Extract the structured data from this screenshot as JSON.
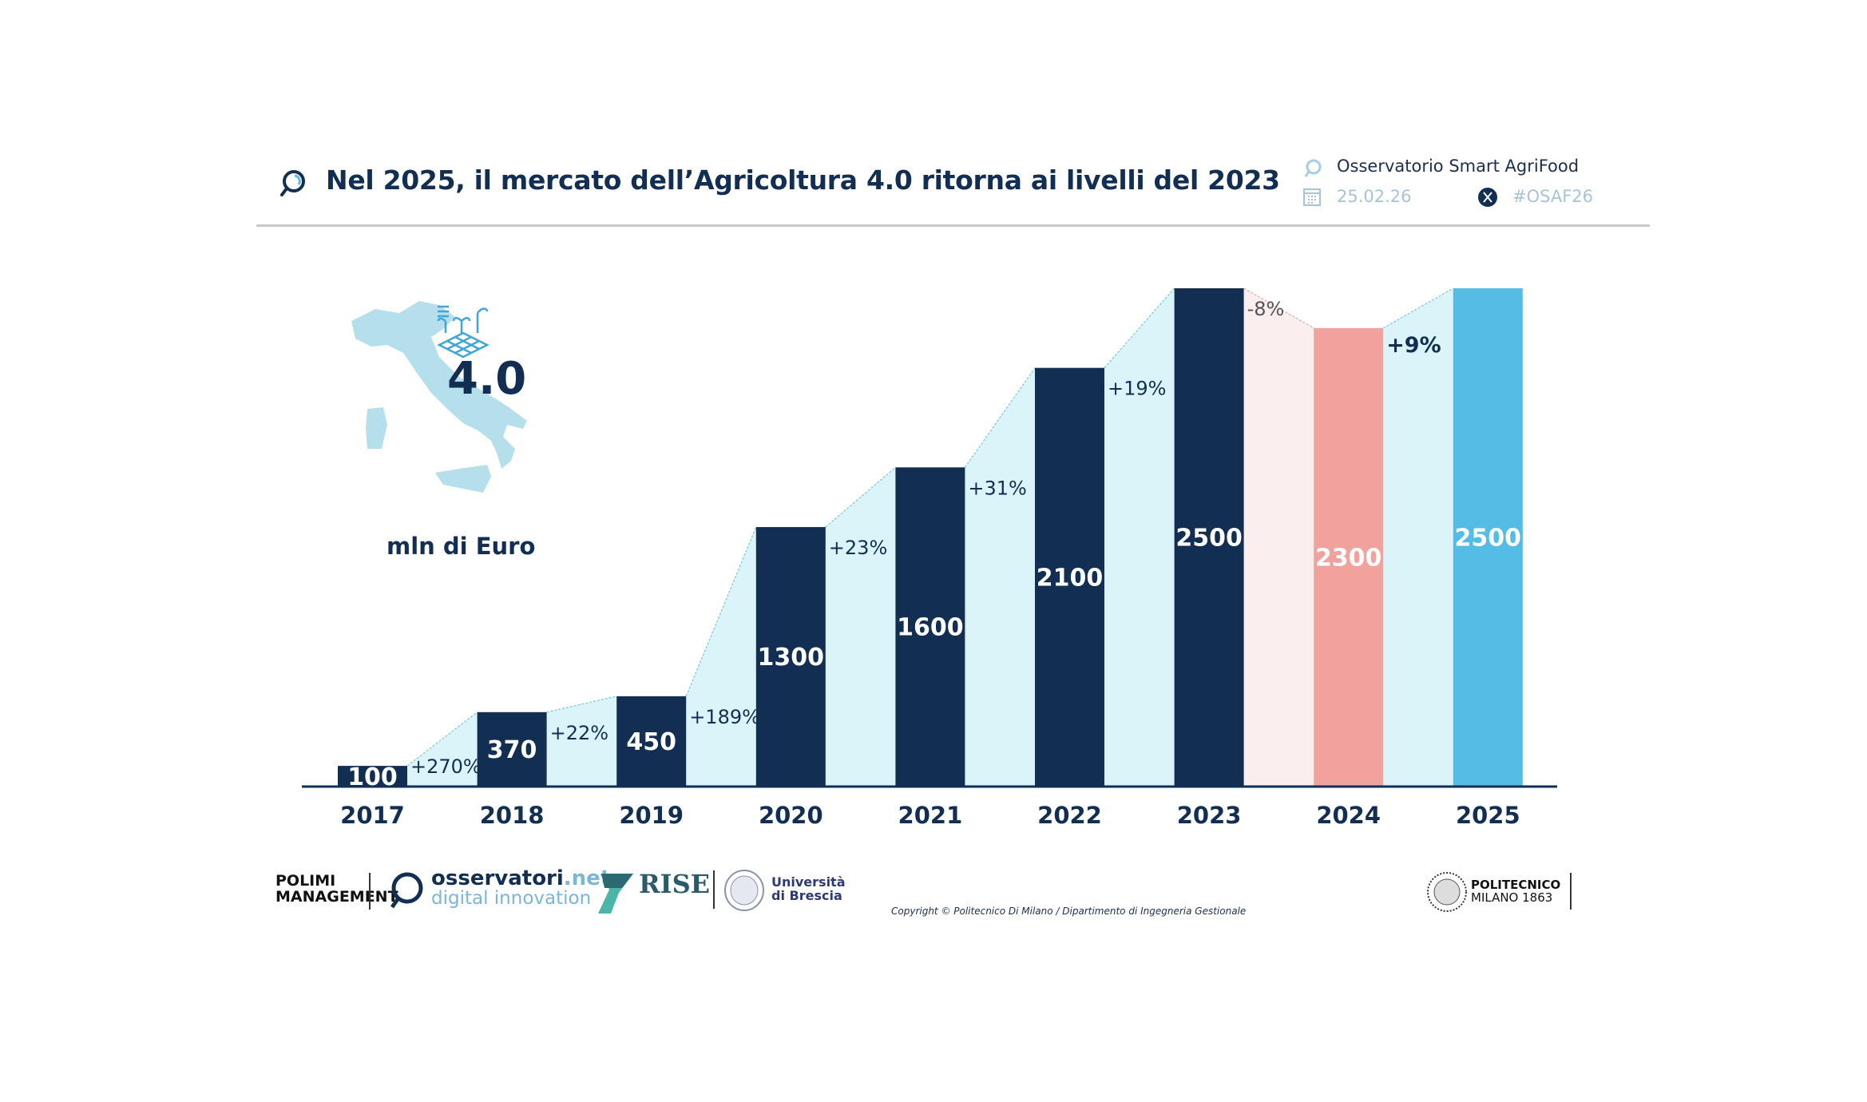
{
  "header": {
    "title": "Nel 2025, il mercato dell’Agricoltura 4.0 ritorna ai livelli del 2023",
    "observatory": "Osservatorio Smart AgriFood",
    "date": "25.02.26",
    "hashtag": "#OSAF26",
    "icons": [
      "magnifier-icon",
      "calendar-icon",
      "x-icon"
    ]
  },
  "badge": {
    "label": "4.0",
    "unit": "mln di Euro"
  },
  "chart_data": {
    "type": "bar",
    "title": "Nel 2025, il mercato dell’Agricoltura 4.0 ritorna ai livelli del 2023",
    "ylabel": "mln di Euro",
    "categories": [
      "2017",
      "2018",
      "2019",
      "2020",
      "2021",
      "2022",
      "2023",
      "2024",
      "2025"
    ],
    "values": [
      100,
      370,
      450,
      1300,
      1600,
      2100,
      2500,
      2300,
      2500
    ],
    "changes": [
      "+270%",
      "+22%",
      "+189%",
      "+23%",
      "+31%",
      "+19%",
      "-8%",
      "+9%"
    ],
    "ylim": [
      0,
      2500
    ],
    "grid": false,
    "colors": {
      "default": "#122e52",
      "2024": "#f2a29d",
      "2025": "#55bce5",
      "growth_fill": "#daf4fa",
      "decline_fill": "#fbeeee"
    }
  },
  "footer": {
    "logos": [
      "POLIMI SCHOOL OF MANAGEMENT",
      "osservatori.net digital innovation",
      "RISE Research & Innovation for Smart Enterprises",
      "Università di Brescia",
      "POLITECNICO MILANO 1863"
    ],
    "copyright": "Copyright © Politecnico Di Milano / Dipartimento di Ingegneria Gestionale"
  }
}
